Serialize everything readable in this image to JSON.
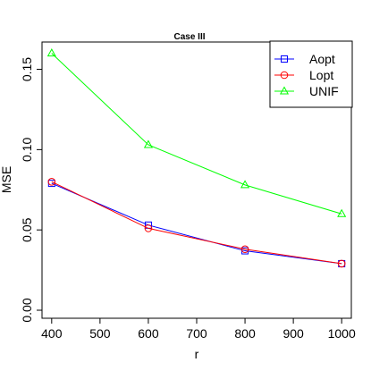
{
  "chart_data": {
    "type": "line",
    "title": "Case III",
    "xlabel": "r",
    "ylabel": "MSE",
    "x": [
      400,
      600,
      800,
      1000
    ],
    "xlim": [
      380,
      1020
    ],
    "ylim": [
      -0.005,
      0.167
    ],
    "xticks": [
      400,
      500,
      600,
      700,
      800,
      900,
      1000
    ],
    "xtick_labels": [
      "400",
      "500",
      "600",
      "700",
      "800",
      "900",
      "1000"
    ],
    "yticks": [
      0.0,
      0.05,
      0.1,
      0.15
    ],
    "ytick_labels": [
      "0.00",
      "0.05",
      "0.10",
      "0.15"
    ],
    "grid": false,
    "legend_position": "top-right",
    "series": [
      {
        "name": "Aopt",
        "values": [
          0.079,
          0.053,
          0.037,
          0.029
        ],
        "color": "#0000ff",
        "marker": "square"
      },
      {
        "name": "Lopt",
        "values": [
          0.08,
          0.051,
          0.038,
          0.029
        ],
        "color": "#ff0000",
        "marker": "circle"
      },
      {
        "name": "UNIF",
        "values": [
          0.16,
          0.103,
          0.078,
          0.06
        ],
        "color": "#00ff00",
        "marker": "triangle"
      }
    ]
  }
}
